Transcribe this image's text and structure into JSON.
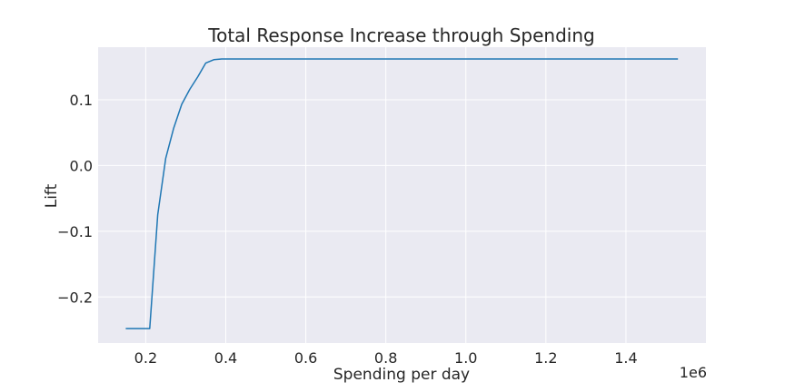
{
  "chart_data": {
    "type": "line",
    "title": "Total Response Increase through Spending",
    "xlabel": "Spending per day",
    "ylabel": "Lift",
    "x_offset_label": "1e6",
    "xlim": [
      0.081,
      1.6
    ],
    "ylim": [
      -0.27,
      0.18
    ],
    "x_ticks": [
      0.2,
      0.4,
      0.6,
      0.8,
      1.0,
      1.2,
      1.4
    ],
    "x_tick_labels": [
      "0.2",
      "0.4",
      "0.6",
      "0.8",
      "1.0",
      "1.2",
      "1.4"
    ],
    "y_ticks": [
      -0.2,
      -0.1,
      0.0,
      0.1
    ],
    "y_tick_labels": [
      "−0.2",
      "−0.1",
      "0.0",
      "0.1"
    ],
    "grid": true,
    "style": "seaborn-darkgrid",
    "colors": {
      "plot_bg": "#eaeaf2",
      "grid": "#ffffff",
      "line": "#1f77b4",
      "text": "#262626"
    },
    "series": [
      {
        "x": [
          0.15,
          0.21,
          0.23,
          0.25,
          0.27,
          0.29,
          0.31,
          0.33,
          0.35,
          0.37,
          0.39,
          0.45,
          0.6,
          0.8,
          1.0,
          1.2,
          1.4,
          1.53
        ],
        "y": [
          -0.248,
          -0.248,
          -0.075,
          0.011,
          0.057,
          0.093,
          0.116,
          0.135,
          0.156,
          0.161,
          0.162,
          0.162,
          0.162,
          0.162,
          0.162,
          0.162,
          0.162,
          0.162
        ]
      }
    ]
  }
}
